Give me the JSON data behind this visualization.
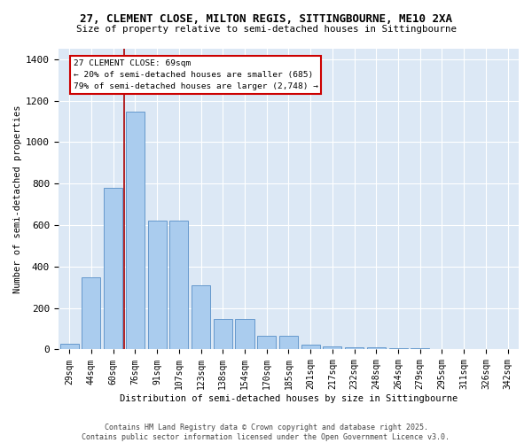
{
  "title": "27, CLEMENT CLOSE, MILTON REGIS, SITTINGBOURNE, ME10 2XA",
  "subtitle": "Size of property relative to semi-detached houses in Sittingbourne",
  "xlabel": "Distribution of semi-detached houses by size in Sittingbourne",
  "ylabel": "Number of semi-detached properties",
  "categories": [
    "29sqm",
    "44sqm",
    "60sqm",
    "76sqm",
    "91sqm",
    "107sqm",
    "123sqm",
    "138sqm",
    "154sqm",
    "170sqm",
    "185sqm",
    "201sqm",
    "217sqm",
    "232sqm",
    "248sqm",
    "264sqm",
    "279sqm",
    "295sqm",
    "311sqm",
    "326sqm",
    "342sqm"
  ],
  "values": [
    28,
    350,
    780,
    1145,
    620,
    620,
    310,
    148,
    148,
    65,
    65,
    25,
    15,
    12,
    10,
    8,
    5,
    3,
    2,
    1,
    1
  ],
  "bar_color": "#aaccee",
  "bar_edge_color": "#6699cc",
  "vline_color": "#aa0000",
  "annotation_title": "27 CLEMENT CLOSE: 69sqm",
  "annotation_line1": "← 20% of semi-detached houses are smaller (685)",
  "annotation_line2": "79% of semi-detached houses are larger (2,748) →",
  "annotation_box_color": "#cc0000",
  "ylim": [
    0,
    1450
  ],
  "yticks": [
    0,
    200,
    400,
    600,
    800,
    1000,
    1200,
    1400
  ],
  "bg_color": "#dce8f5",
  "footer1": "Contains HM Land Registry data © Crown copyright and database right 2025.",
  "footer2": "Contains public sector information licensed under the Open Government Licence v3.0."
}
